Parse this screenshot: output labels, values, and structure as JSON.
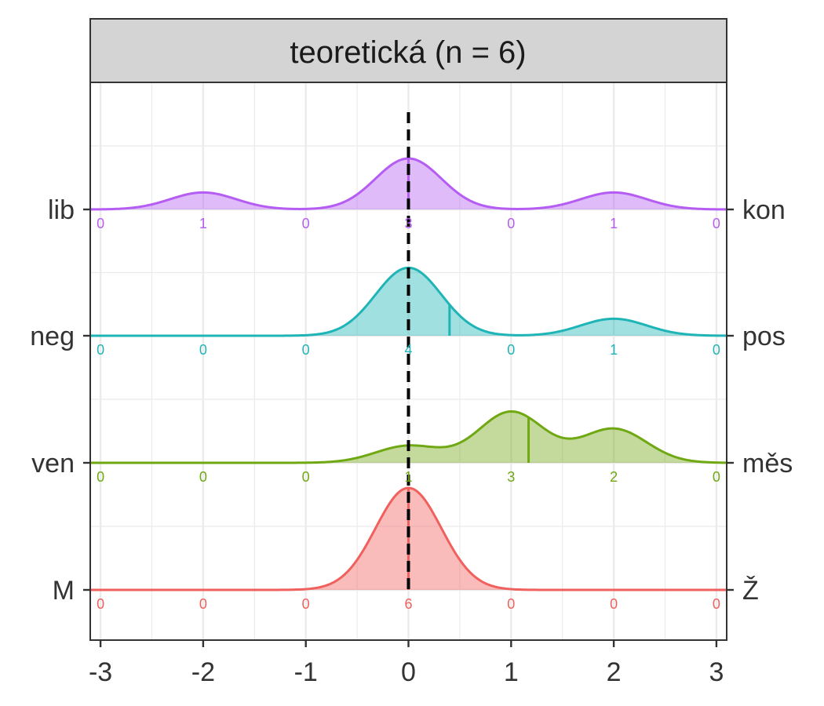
{
  "chart_data": {
    "type": "ridgeline-density",
    "facet_title": "teoretická (n = 6)",
    "x_ticks": [
      "-3",
      "-2",
      "-1",
      "0",
      "1",
      "2",
      "3"
    ],
    "xlim": [
      -3.1,
      3.1
    ],
    "count_positions": [
      -3,
      -2,
      -1,
      0,
      1,
      2,
      3
    ],
    "reference_line_x": 0,
    "grid": true,
    "series": [
      {
        "left_label": "M",
        "right_label": "Ž",
        "color": "#F0605D",
        "counts": [
          0,
          0,
          0,
          6,
          0,
          0,
          0
        ],
        "mean": 0
      },
      {
        "left_label": "ven",
        "right_label": "měs",
        "color": "#6FA812",
        "counts": [
          0,
          0,
          0,
          1,
          3,
          2,
          0
        ],
        "mean": 1.17
      },
      {
        "left_label": "neg",
        "right_label": "pos",
        "color": "#1FB4B6",
        "counts": [
          0,
          0,
          0,
          4,
          0,
          1,
          0
        ],
        "mean": 0.4
      },
      {
        "left_label": "lib",
        "right_label": "kon",
        "color": "#B55DF3",
        "counts": [
          0,
          1,
          0,
          3,
          0,
          1,
          0
        ],
        "mean": 0
      }
    ]
  }
}
